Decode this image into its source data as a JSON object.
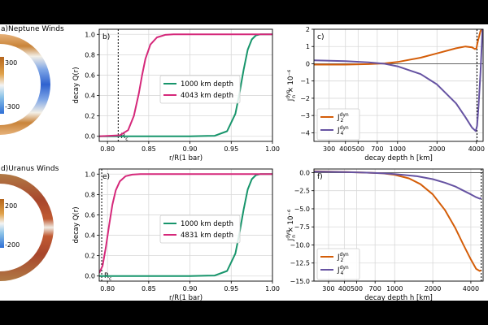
{
  "chart_data": [
    {
      "id": "a",
      "type": "polar-heatmap",
      "title": "a)Neptune Winds",
      "colorbar_ticks": [
        "300",
        "-300"
      ],
      "colors": {
        "positive": "#b5651d",
        "negative": "#2e6fd6"
      }
    },
    {
      "id": "b",
      "type": "line",
      "panel_label": "b)",
      "xlabel": "r/R(1 bar)",
      "ylabel": "decay Q(r)",
      "xlim": [
        0.79,
        1.0
      ],
      "ylim": [
        -0.05,
        1.05
      ],
      "xticks": [
        0.8,
        0.85,
        0.9,
        0.95,
        1.0
      ],
      "xtick_labels": [
        "0.80",
        "0.85",
        "0.90",
        "0.95",
        "1.00"
      ],
      "yticks": [
        0.0,
        0.2,
        0.4,
        0.6,
        0.8,
        1.0
      ],
      "ytick_labels": [
        "0.0",
        "0.2",
        "0.4",
        "0.6",
        "0.8",
        "1.0"
      ],
      "grid": true,
      "legend_position": "center-right",
      "vline": {
        "x": 0.813,
        "label": "R",
        "label_sub": "c"
      },
      "series": [
        {
          "name": "1000 km depth",
          "color": "#17956b",
          "x": [
            0.79,
            0.9,
            0.93,
            0.945,
            0.955,
            0.96,
            0.965,
            0.97,
            0.975,
            0.98,
            0.985,
            1.0
          ],
          "y": [
            0.0,
            0.0,
            0.005,
            0.05,
            0.22,
            0.42,
            0.65,
            0.85,
            0.95,
            0.99,
            1.0,
            1.0
          ]
        },
        {
          "name": "4043 km depth",
          "color": "#d5287a",
          "x": [
            0.79,
            0.815,
            0.825,
            0.832,
            0.838,
            0.842,
            0.846,
            0.852,
            0.86,
            0.87,
            0.88,
            1.0
          ],
          "y": [
            0.0,
            0.01,
            0.06,
            0.2,
            0.42,
            0.6,
            0.76,
            0.9,
            0.97,
            0.995,
            1.0,
            1.0
          ]
        }
      ]
    },
    {
      "id": "c",
      "type": "line",
      "panel_label": "c)",
      "xlabel": "decay depth h [km]",
      "ylabel": "J",
      "ylabel_sup": "dyn",
      "ylabel_sub": "n",
      "ylabel_suffix": " × 10⁻⁶",
      "xscale": "log",
      "xlim": [
        230,
        4500
      ],
      "ylim": [
        -4.5,
        2.0
      ],
      "xticks": [
        300,
        400,
        500,
        700,
        1000,
        2000,
        4000
      ],
      "xtick_labels": [
        "300",
        "400",
        "500",
        "700",
        "1000",
        "2000",
        "4000"
      ],
      "yticks": [
        -4,
        -3,
        -2,
        -1,
        0,
        1,
        2
      ],
      "ytick_labels": [
        "−4",
        "−3",
        "−2",
        "−1",
        "0",
        "1",
        "2"
      ],
      "grid": true,
      "zero_line": true,
      "legend_position": "lower-left",
      "vline": {
        "x": 4043
      },
      "series": [
        {
          "name": "J",
          "name_sub": "2",
          "name_sup": "dyn",
          "color": "#d45d08",
          "x": [
            230,
            400,
            600,
            800,
            1000,
            1500,
            2000,
            2800,
            3300,
            3700,
            3900,
            4000,
            4100,
            4300,
            4500
          ],
          "y": [
            -0.05,
            -0.05,
            -0.02,
            0.02,
            0.1,
            0.35,
            0.6,
            0.9,
            1.0,
            0.95,
            0.85,
            0.9,
            1.3,
            1.9,
            2.0
          ]
        },
        {
          "name": "J",
          "name_sub": "4",
          "name_sup": "dyn",
          "color": "#6653a2",
          "x": [
            230,
            400,
            600,
            800,
            1000,
            1500,
            2000,
            2800,
            3300,
            3700,
            3950,
            4050,
            4150,
            4300,
            4450
          ],
          "y": [
            0.2,
            0.15,
            0.08,
            0.0,
            -0.15,
            -0.6,
            -1.2,
            -2.3,
            -3.1,
            -3.7,
            -3.9,
            -3.6,
            -2.5,
            -0.5,
            2.0
          ]
        }
      ]
    },
    {
      "id": "d",
      "type": "polar-heatmap",
      "title": "d)Uranus Winds",
      "colorbar_ticks": [
        "200",
        "-200"
      ],
      "colors": {
        "positive": "#b5651d",
        "negative": "#2e6fd6"
      }
    },
    {
      "id": "e",
      "type": "line",
      "panel_label": "e)",
      "xlabel": "r/R(1 bar)",
      "ylabel": "decay Q(r)",
      "xlim": [
        0.79,
        1.0
      ],
      "ylim": [
        -0.05,
        1.05
      ],
      "xticks": [
        0.8,
        0.85,
        0.9,
        0.95,
        1.0
      ],
      "xtick_labels": [
        "0.80",
        "0.85",
        "0.90",
        "0.95",
        "1.00"
      ],
      "yticks": [
        0.0,
        0.2,
        0.4,
        0.6,
        0.8,
        1.0
      ],
      "ytick_labels": [
        "0.0",
        "0.2",
        "0.4",
        "0.6",
        "0.8",
        "1.0"
      ],
      "grid": true,
      "legend_position": "center-right",
      "vline": {
        "x": 0.793,
        "label": "R",
        "label_sub": "c"
      },
      "series": [
        {
          "name": "1000 km depth",
          "color": "#17956b",
          "x": [
            0.79,
            0.9,
            0.93,
            0.945,
            0.955,
            0.96,
            0.965,
            0.97,
            0.975,
            0.98,
            0.985,
            1.0
          ],
          "y": [
            0.0,
            0.0,
            0.005,
            0.05,
            0.22,
            0.42,
            0.65,
            0.85,
            0.95,
            0.99,
            1.0,
            1.0
          ]
        },
        {
          "name": "4831 km depth",
          "color": "#d5287a",
          "x": [
            0.79,
            0.794,
            0.798,
            0.802,
            0.806,
            0.81,
            0.815,
            0.822,
            0.83,
            0.84,
            0.85,
            1.0
          ],
          "y": [
            0.03,
            0.1,
            0.28,
            0.5,
            0.7,
            0.84,
            0.93,
            0.98,
            0.995,
            1.0,
            1.0,
            1.0
          ]
        }
      ]
    },
    {
      "id": "f",
      "type": "line",
      "panel_label": "f)",
      "xlabel": "decay depth h [km]",
      "ylabel": "J",
      "ylabel_sup": "dyn",
      "ylabel_sub": "n",
      "ylabel_suffix": " × 10⁻⁶",
      "xscale": "log",
      "xlim": [
        230,
        5000
      ],
      "ylim": [
        -15.0,
        0.5
      ],
      "xticks": [
        300,
        400,
        500,
        700,
        1000,
        2000,
        4000
      ],
      "xtick_labels": [
        "300",
        "400",
        "500",
        "700",
        "1000",
        "2000",
        "4000"
      ],
      "yticks": [
        -15.0,
        -12.5,
        -10.0,
        -7.5,
        -5.0,
        -2.5,
        0.0
      ],
      "ytick_labels": [
        "−15.0",
        "−12.5",
        "−10.0",
        "−7.5",
        "−5.0",
        "−2.5",
        "0.0"
      ],
      "grid": true,
      "zero_line": true,
      "legend_position": "lower-left",
      "vline": {
        "x": 4831
      },
      "series": [
        {
          "name": "J",
          "name_sub": "2",
          "name_sup": "dyn",
          "color": "#d45d08",
          "x": [
            230,
            400,
            600,
            800,
            1000,
            1300,
            1600,
            2000,
            2500,
            3000,
            3500,
            4000,
            4400,
            4700,
            4831
          ],
          "y": [
            0.2,
            0.1,
            0.0,
            -0.1,
            -0.3,
            -0.8,
            -1.6,
            -3.0,
            -5.2,
            -7.6,
            -10.0,
            -12.0,
            -13.3,
            -13.6,
            -13.5
          ]
        },
        {
          "name": "J",
          "name_sub": "4",
          "name_sup": "dyn",
          "color": "#6653a2",
          "x": [
            230,
            400,
            600,
            800,
            1000,
            1500,
            2000,
            2500,
            3000,
            3500,
            4000,
            4400,
            4700,
            4831
          ],
          "y": [
            0.15,
            0.08,
            0.0,
            -0.08,
            -0.2,
            -0.5,
            -0.9,
            -1.4,
            -1.9,
            -2.5,
            -3.0,
            -3.4,
            -3.6,
            -3.5
          ]
        }
      ]
    }
  ]
}
